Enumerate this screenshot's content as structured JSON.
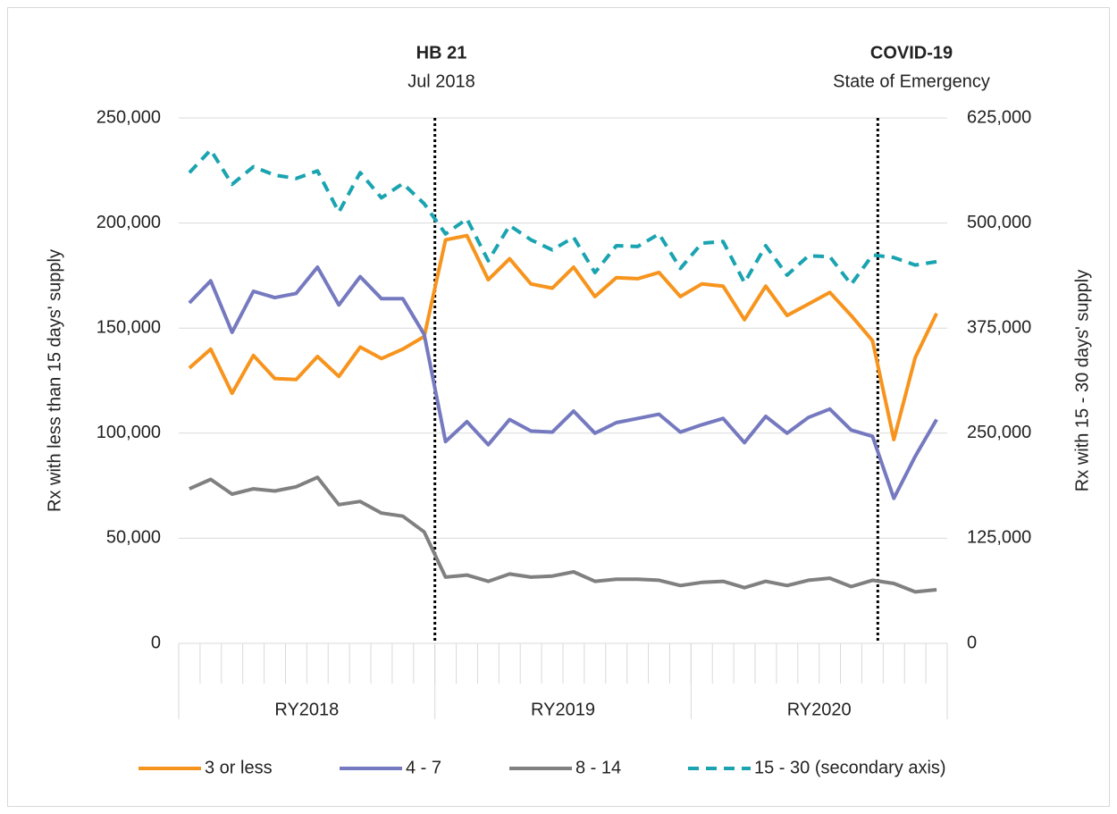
{
  "chart_data": {
    "type": "line",
    "y_label": "Rx with less than 15 days' supply",
    "y2_label": "Rx with 15 - 30 days' supply",
    "annotations": [
      {
        "title": "HB 21",
        "subtitle": "Jul 2018"
      },
      {
        "title": "COVID-19",
        "subtitle": "State of Emergency"
      }
    ],
    "groups": [
      "RY2018",
      "RY2019",
      "RY2020"
    ],
    "categories": [
      null,
      null,
      null,
      null,
      null,
      null,
      null,
      null,
      null,
      null,
      null,
      null,
      null,
      null,
      null,
      null,
      null,
      null,
      null,
      null,
      null,
      null,
      null,
      null,
      null,
      null,
      null,
      null,
      null,
      null,
      null,
      null,
      null,
      null,
      null,
      null
    ],
    "ylim": [
      0,
      250000
    ],
    "yticks": [
      0,
      {
        "value": 50000,
        "label": "50,000"
      },
      {
        "value": 100000,
        "label": "100,000"
      },
      {
        "value": 150000,
        "label": "150,000"
      },
      {
        "value": 200000,
        "label": "200,000"
      },
      {
        "value": 250000,
        "label": "250,000"
      }
    ],
    "y2lim": [
      0,
      625000
    ],
    "y2ticks": [
      0,
      {
        "value": 125000,
        "label": "125,000"
      },
      {
        "value": 250000,
        "label": "250,000"
      },
      {
        "value": 375000,
        "label": "375,000"
      },
      {
        "value": 500000,
        "label": "500,000"
      },
      {
        "value": 625000,
        "label": "625,000"
      }
    ],
    "grid": true,
    "legend": "bottom",
    "series": [
      {
        "name": "3 or less",
        "color": "#f7941d",
        "values": [
          131000,
          140000,
          119000,
          137000,
          126000,
          125500,
          136500,
          127000,
          141000,
          135500,
          140000,
          146000,
          192000,
          194000,
          173000,
          183000,
          171000,
          169000,
          179000,
          165000,
          174000,
          173500,
          176500,
          165000,
          171000,
          170000,
          154000,
          170000,
          156000,
          161500,
          167000,
          156000,
          144000,
          97000,
          136000,
          157000
        ]
      },
      {
        "name": "4 - 7",
        "color": "#7579bf",
        "values": [
          162000,
          172500,
          148000,
          167500,
          164500,
          166500,
          179000,
          161000,
          174500,
          164000,
          164000,
          147000,
          96000,
          105500,
          94500,
          106500,
          101000,
          100500,
          110500,
          100000,
          105000,
          107000,
          109000,
          100500,
          104000,
          107000,
          95500,
          108000,
          100000,
          107500,
          111500,
          101500,
          98500,
          69000,
          89000,
          106500
        ]
      },
      {
        "name": "8 - 14",
        "color": "#808080",
        "values": [
          73500,
          78000,
          71000,
          73500,
          72500,
          74500,
          79000,
          66000,
          67500,
          62000,
          60500,
          53000,
          31500,
          32500,
          29500,
          33000,
          31500,
          32000,
          34000,
          29500,
          30500,
          30500,
          30000,
          27500,
          29000,
          29500,
          26500,
          29500,
          27500,
          30000,
          31000,
          27000,
          30000,
          28500,
          24500,
          25500
        ]
      },
      {
        "name": "15 - 30 (secondary axis)",
        "color": "#1aa3b0",
        "dashed": true,
        "axis": "y2",
        "values": [
          560000,
          587000,
          546000,
          567000,
          557000,
          553000,
          562000,
          513000,
          560000,
          530000,
          547000,
          523000,
          487000,
          505000,
          455000,
          497000,
          480000,
          468000,
          483000,
          441000,
          473000,
          472000,
          487000,
          446000,
          476000,
          478000,
          429000,
          473000,
          438000,
          461000,
          460000,
          427000,
          462000,
          459000,
          450000,
          454000
        ]
      }
    ]
  }
}
